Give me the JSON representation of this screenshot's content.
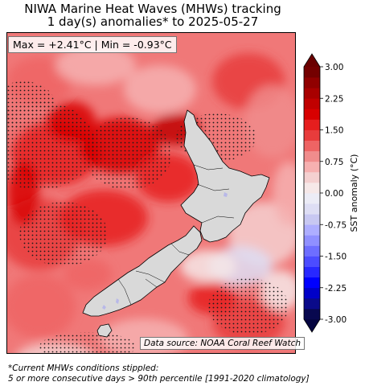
{
  "title_line1": "NIWA Marine Heat Waves (MHWs) tracking",
  "title_line2": "1 day(s) anomalies* to 2025-05-27",
  "stats": "Max = +2.41°C | Min = -0.93°C",
  "source": "Data source: NOAA Coral Reef Watch",
  "colorbar": {
    "label": "SST anomaly (°C)",
    "ticks": [
      "3.00",
      "2.25",
      "1.50",
      "0.75",
      "0.00",
      "-0.75",
      "-1.50",
      "-2.25",
      "-3.00"
    ],
    "levels": [
      -3.0,
      -2.75,
      -2.5,
      -2.25,
      -2.0,
      -1.75,
      -1.5,
      -1.25,
      -1.0,
      -0.75,
      -0.5,
      -0.25,
      0.0,
      0.25,
      0.5,
      0.75,
      1.0,
      1.25,
      1.5,
      1.75,
      2.0,
      2.25,
      2.5,
      2.75,
      3.0
    ],
    "colors": [
      "#08084f",
      "#0a0a8a",
      "#0000c8",
      "#0000ff",
      "#2828ff",
      "#4c4cff",
      "#6e6eff",
      "#9090ff",
      "#aeaeff",
      "#c8c8f2",
      "#dedef4",
      "#ececf6",
      "#f6e8e8",
      "#f4d0d0",
      "#f6b0b0",
      "#f08c8c",
      "#ee6464",
      "#e83c3c",
      "#e61e1e",
      "#d80000",
      "#c00000",
      "#a80000",
      "#900000",
      "#740000"
    ],
    "extend_max_color": "#6a0000",
    "extend_min_color": "#050540"
  },
  "map": {
    "land_color": "#d9d9d9",
    "ocean_background": "#f07878",
    "stipple_color": "#1a1a1a"
  },
  "footnote_line1": "*Current MHWs conditions stippled:",
  "footnote_line2": "5 or more consecutive days > 90th percentile [1991-2020 climatology]"
}
